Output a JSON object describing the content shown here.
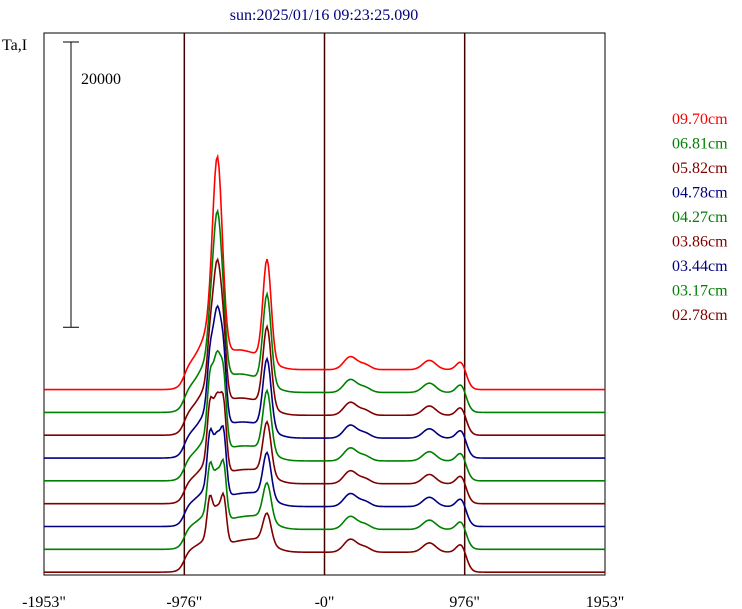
{
  "chart_data": {
    "type": "line",
    "title": "sun:2025/01/16 09:23:25.090",
    "ylabel": "Ta,I",
    "scale_bar_label": "20000",
    "scale_bar_value": 20000,
    "xlim": [
      -1953,
      1953
    ],
    "x_ticks": [
      {
        "value": -1953,
        "label": "-1953\""
      },
      {
        "value": -976,
        "label": "-976\""
      },
      {
        "value": 0,
        "label": "-0\""
      },
      {
        "value": 976,
        "label": "976\""
      },
      {
        "value": 1953,
        "label": "1953\""
      }
    ],
    "vertical_lines": [
      -976,
      0,
      976
    ],
    "series": [
      {
        "name": "09.70cm",
        "color": "#ff0000",
        "offset": 13000,
        "amp": 1.0,
        "split": 0.0
      },
      {
        "name": "06.81cm",
        "color": "#008000",
        "offset": 11400,
        "amp": 0.9,
        "split": 0.15
      },
      {
        "name": "05.82cm",
        "color": "#800000",
        "offset": 9800,
        "amp": 0.82,
        "split": 0.3
      },
      {
        "name": "04.78cm",
        "color": "#000080",
        "offset": 8200,
        "amp": 0.74,
        "split": 0.45
      },
      {
        "name": "04.27cm",
        "color": "#008000",
        "offset": 6600,
        "amp": 0.66,
        "split": 0.6
      },
      {
        "name": "03.86cm",
        "color": "#800000",
        "offset": 5000,
        "amp": 0.58,
        "split": 0.72
      },
      {
        "name": "03.44cm",
        "color": "#000080",
        "offset": 3400,
        "amp": 0.5,
        "split": 0.82
      },
      {
        "name": "03.17cm",
        "color": "#008000",
        "offset": 1800,
        "amp": 0.42,
        "split": 0.9
      },
      {
        "name": "02.78cm",
        "color": "#800000",
        "offset": 200,
        "amp": 0.34,
        "split": 1.0
      }
    ],
    "ylim": [
      0,
      38000
    ]
  }
}
